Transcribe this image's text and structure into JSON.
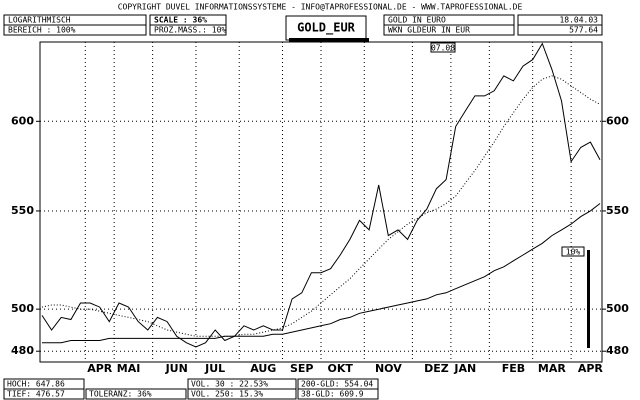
{
  "header": {
    "copyright": "COPYRIGHT  DUVEL INFORMATIONSSYSTEME - INFO@TAPROFESSIONAL.DE - WWW.TAPROFESSIONAL.DE",
    "scale_mode": "LOGARITHMISCH",
    "range": "BEREICH :  100%",
    "scale": "SCALE : 36%",
    "percent_measure": "PROZ.MASS.: 10%",
    "symbol": "GOLD_EUR",
    "name": "GOLD IN EURO",
    "wkn": "WKN GLDEUR  IN EUR",
    "date": "18.04.03",
    "last": "577.64"
  },
  "chart_data": {
    "type": "line",
    "log_scale": true,
    "grid": true,
    "ylim": [
      475,
      648
    ],
    "yticks": [
      480,
      500,
      550,
      600
    ],
    "categories": [
      null,
      null,
      null,
      null,
      null,
      null,
      "APR",
      null,
      null,
      "MAI",
      null,
      null,
      null,
      null,
      "JUN",
      null,
      null,
      null,
      "JUL",
      null,
      null,
      null,
      null,
      "AUG",
      null,
      null,
      null,
      "SEP",
      null,
      null,
      null,
      "OKT",
      null,
      null,
      null,
      null,
      "NOV",
      null,
      null,
      null,
      null,
      "DEZ",
      null,
      null,
      "JAN",
      null,
      null,
      null,
      null,
      "FEB",
      null,
      null,
      null,
      "MAR",
      null,
      null,
      null,
      "APR",
      null
    ],
    "series": [
      {
        "color": "#000000",
        "dash": "none",
        "values": [
          497,
          490,
          496,
          495,
          503,
          503,
          501,
          494,
          503,
          501,
          494,
          490,
          496,
          494,
          487,
          484,
          482,
          484,
          490,
          485,
          487,
          492,
          490,
          492,
          490,
          490,
          505,
          508,
          518,
          518,
          520,
          527,
          535,
          545,
          540,
          564,
          537,
          540,
          535,
          545,
          551,
          562,
          567,
          597,
          606,
          615,
          615,
          618,
          627,
          624,
          633,
          637,
          647,
          631,
          612,
          577,
          585,
          588,
          578
        ]
      },
      {
        "color": "#000000",
        "dash": "1 2",
        "values": [
          501,
          502,
          502,
          501,
          500,
          500,
          499,
          498,
          497,
          496,
          495,
          494,
          492,
          490,
          489,
          488,
          487,
          487,
          487,
          487,
          487,
          488,
          488,
          489,
          490,
          491,
          493,
          496,
          499,
          503,
          507,
          511,
          515,
          520,
          525,
          530,
          535,
          539,
          543,
          546,
          549,
          551,
          554,
          558,
          565,
          572,
          580,
          588,
          597,
          605,
          613,
          620,
          625,
          627,
          625,
          621,
          617,
          613,
          610
        ]
      },
      {
        "color": "#000000",
        "dash": "none",
        "values": [
          484,
          484,
          484,
          485,
          485,
          485,
          485,
          486,
          486,
          486,
          486,
          486,
          486,
          486,
          486,
          486,
          486,
          486,
          486,
          487,
          487,
          487,
          487,
          487,
          488,
          488,
          489,
          490,
          491,
          492,
          493,
          495,
          496,
          498,
          499,
          500,
          501,
          502,
          503,
          504,
          505,
          507,
          508,
          510,
          512,
          514,
          516,
          519,
          521,
          524,
          527,
          530,
          533,
          537,
          540,
          543,
          547,
          550,
          554
        ]
      }
    ],
    "marker": "07.08",
    "scale_bar": "10%"
  },
  "footer": {
    "high": "HOCH: 647.86",
    "low": "TIEF: 476.57",
    "tolerance": "TOLERANZ: 36%",
    "vol30": "VOL. 30 : 22.53%",
    "vol250": "VOL. 250: 15.3%",
    "gld200": "200-GLD: 554.04",
    "gld38": "38-GLD: 609.9"
  }
}
